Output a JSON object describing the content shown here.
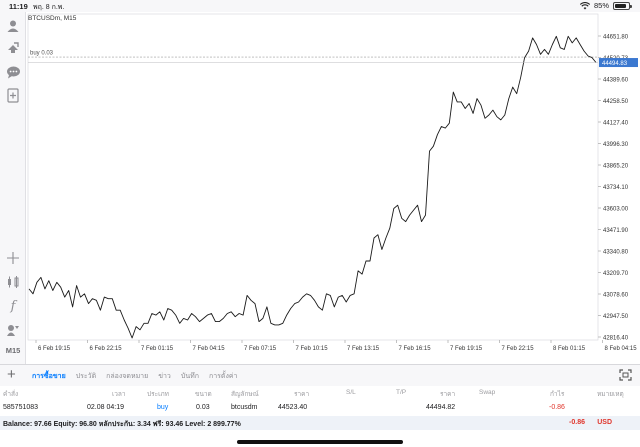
{
  "status": {
    "time": "11:19",
    "date": "พฤ. 8 ก.พ.",
    "battery": "85%",
    "battery_level_pct": 85
  },
  "toolbar": {
    "timeframe": "M15",
    "icons": [
      "account-icon",
      "trade-icon",
      "chat-icon",
      "add-document-icon",
      "crosshair-icon",
      "indicators-icon",
      "function-icon",
      "objects-icon"
    ]
  },
  "chart": {
    "symbol_label": "BTCUSDm, M15",
    "order_line_label": "buy 0.03",
    "current_price": "44494.83",
    "y_ticks": [
      "44651.80",
      "44520.73",
      "44389.60",
      "44258.50",
      "44127.40",
      "43996.30",
      "43865.20",
      "43734.10",
      "43603.00",
      "43471.90",
      "43340.80",
      "43209.70",
      "43078.60",
      "42947.50",
      "42816.40"
    ],
    "x_ticks": [
      "6 Feb 19:15",
      "6 Feb 22:15",
      "7 Feb 01:15",
      "7 Feb 04:15",
      "7 Feb 07:15",
      "7 Feb 10:15",
      "7 Feb 13:15",
      "7 Feb 16:15",
      "7 Feb 19:15",
      "7 Feb 22:15",
      "8 Feb 01:15",
      "8 Feb 04:15"
    ],
    "colors": {
      "line": "#1a1a1a",
      "order_line": "#9a9a9a",
      "price_tag": "#3b78d0",
      "grid": "#f0f0f2"
    }
  },
  "chart_data": {
    "type": "line",
    "ylim": [
      42760,
      44700
    ],
    "order_price": 44523.4,
    "series": [
      {
        "values": [
          43110,
          43080,
          43150,
          43180,
          43110,
          43160,
          43100,
          43150,
          43120,
          43060,
          43100,
          43000,
          43130,
          43060,
          43080,
          43020,
          43050,
          43040,
          42980,
          43060,
          43050,
          43050,
          42980,
          42980,
          42920,
          42870,
          42810,
          42880,
          42860,
          42900,
          42900,
          42960,
          42950,
          42970,
          42920,
          42990,
          42980,
          42950,
          42900,
          42930,
          42920,
          42960,
          42940,
          42910,
          42930,
          42950,
          42960,
          42910,
          42910,
          42930,
          42960,
          42970,
          42940,
          42960,
          42950,
          43070,
          43040,
          43020,
          42910,
          42930,
          43000,
          42900,
          42890,
          42890,
          42900,
          42950,
          42990,
          43020,
          43030,
          43060,
          43080,
          43070,
          43040,
          43000,
          42980,
          43080,
          43070,
          43000,
          43060,
          43070,
          43030,
          43070,
          43080,
          43220,
          43200,
          43280,
          43280,
          43420,
          43440,
          43350,
          43420,
          43480,
          43600,
          43620,
          43540,
          43520,
          43560,
          43590,
          43620,
          43520,
          43560,
          43950,
          43980,
          44050,
          44100,
          44090,
          44120,
          44310,
          44250,
          44250,
          44210,
          44240,
          44180,
          44270,
          44230,
          44150,
          44170,
          44200,
          44160,
          44140,
          44170,
          44270,
          44340,
          44300,
          44400,
          44520,
          44560,
          44640,
          44600,
          44540,
          44570,
          44540,
          44600,
          44650,
          44580,
          44570,
          44650,
          44610,
          44640,
          44600,
          44560,
          44530,
          44520,
          44490
        ]
      }
    ]
  },
  "bottom": {
    "tabs": [
      "การซื้อขาย",
      "ประวัติ",
      "กล่องจดหมาย",
      "ข่าว",
      "บันทึก",
      "การตั้งค่า"
    ],
    "active_tab": 0
  },
  "table": {
    "headers": [
      "คำสั่ง",
      "เวลา",
      "ประเภท",
      "ขนาด",
      "สัญลักษณ์",
      "ราคา",
      "S/L",
      "T/P",
      "ราคา",
      "Swap",
      "กำไร",
      "หมายเหตุ"
    ],
    "rows": [
      {
        "order": "585751083",
        "time": "02.08 04:19",
        "type": "buy",
        "size": "0.03",
        "symbol": "btcusdm",
        "open_price": "44523.40",
        "sl": "",
        "tp": "",
        "price": "44494.82",
        "swap": "",
        "profit": "-0.86",
        "comment": ""
      }
    ]
  },
  "balance": {
    "text": "Balance: 97.66 Equity: 96.80 หลักประกัน: 3.34 ฟรี: 93.46 Level: 2 899.77%",
    "total": "-0.86",
    "currency": "USD"
  }
}
